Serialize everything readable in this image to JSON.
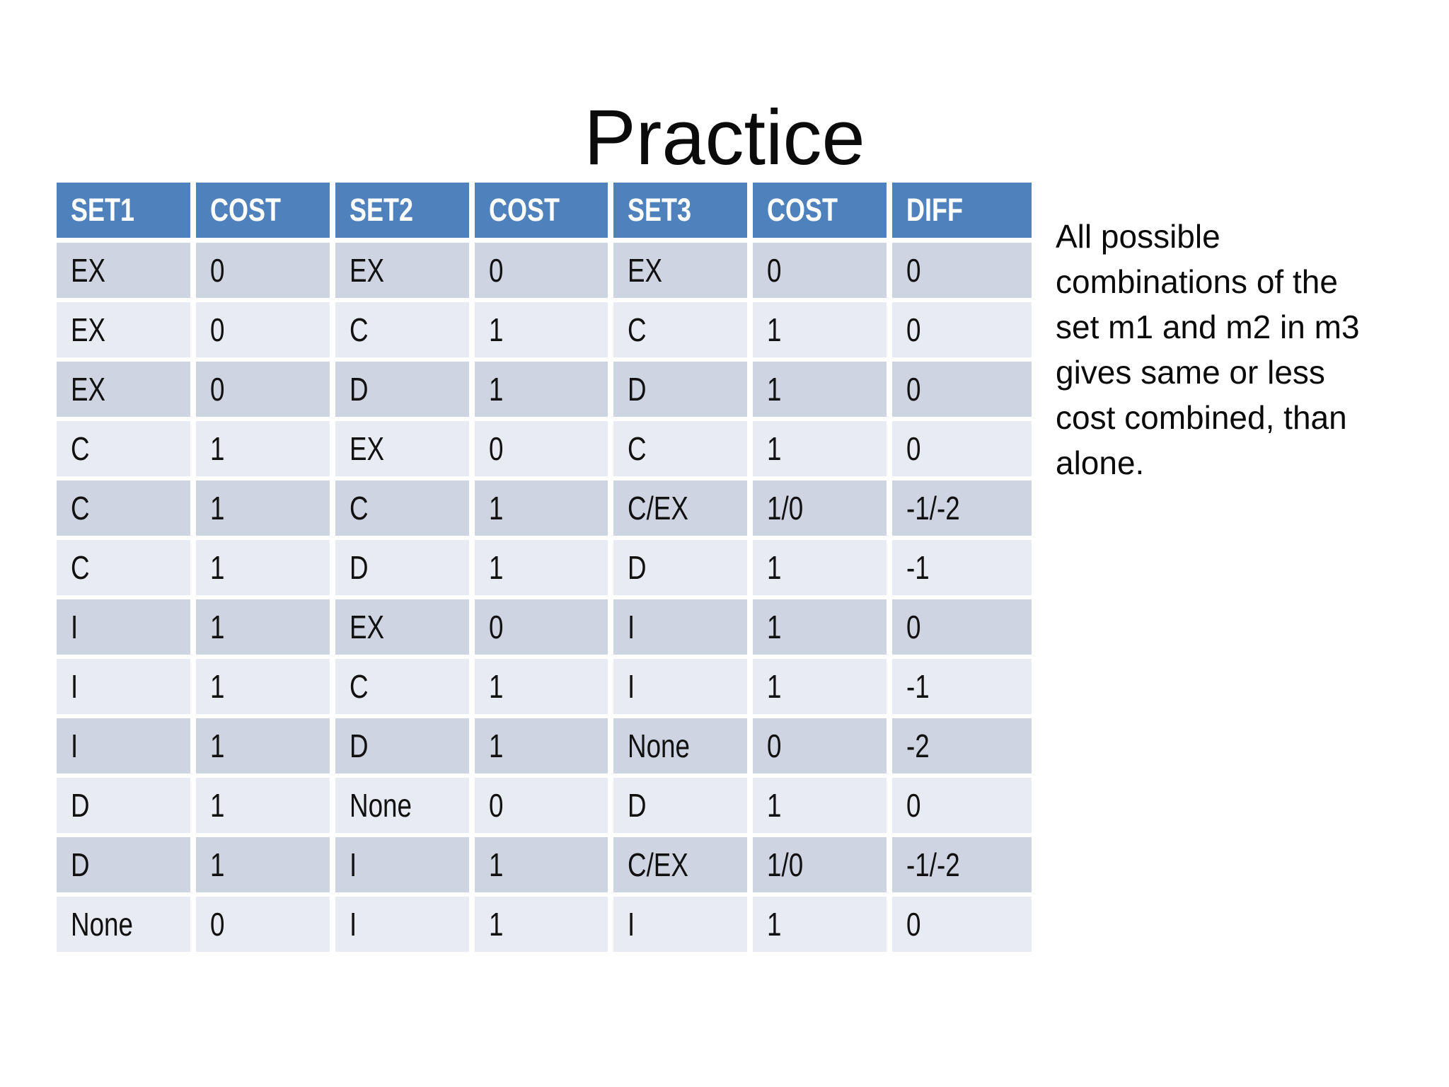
{
  "slide": {
    "title": "Practice",
    "note": "All possible\ncombinations of the\nset m1 and m2 in m3\ngives same or less\ncost combined, than\nalone.",
    "colors": {
      "background": "#ffffff",
      "header_bg": "#4f81bd",
      "header_text": "#ffffff",
      "row_band_dark": "#ced4e2",
      "row_band_light": "#e9ebf2",
      "body_text": "#111111"
    },
    "table": {
      "columns": [
        "SET1",
        "COST",
        "SET2",
        "COST",
        "SET3",
        "COST",
        "DIFF"
      ],
      "rows": [
        [
          "EX",
          "0",
          "EX",
          "0",
          "EX",
          "0",
          "0"
        ],
        [
          "EX",
          "0",
          "C",
          "1",
          "C",
          "1",
          "0"
        ],
        [
          "EX",
          "0",
          "D",
          "1",
          "D",
          "1",
          "0"
        ],
        [
          "C",
          "1",
          "EX",
          "0",
          "C",
          "1",
          "0"
        ],
        [
          "C",
          "1",
          "C",
          "1",
          "C/EX",
          "1/0",
          "-1/-2"
        ],
        [
          "C",
          "1",
          "D",
          "1",
          "D",
          "1",
          "-1"
        ],
        [
          "I",
          "1",
          "EX",
          "0",
          "I",
          "1",
          "0"
        ],
        [
          "I",
          "1",
          "C",
          "1",
          "I",
          "1",
          "-1"
        ],
        [
          "I",
          "1",
          "D",
          "1",
          "None",
          "0",
          "-2"
        ],
        [
          "D",
          "1",
          "None",
          "0",
          "D",
          "1",
          "0"
        ],
        [
          "D",
          "1",
          "I",
          "1",
          "C/EX",
          "1/0",
          "-1/-2"
        ],
        [
          "None",
          "0",
          "I",
          "1",
          "I",
          "1",
          "0"
        ]
      ]
    }
  }
}
